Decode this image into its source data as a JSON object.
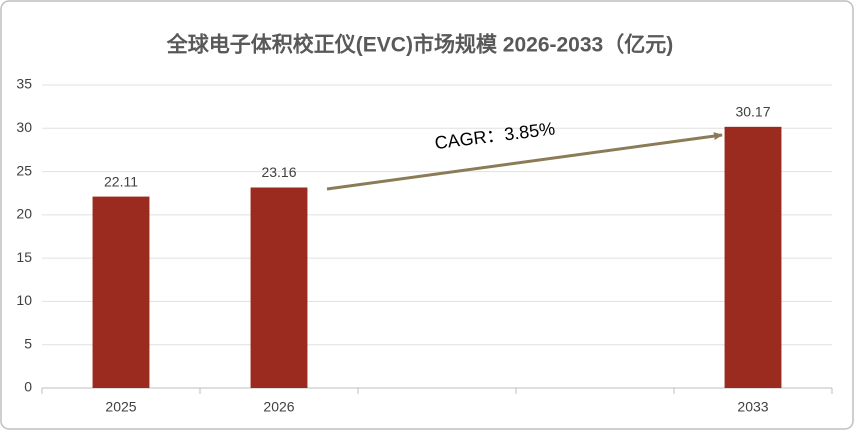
{
  "chart_data": {
    "type": "bar",
    "title": "全球电子体积校正仪(EVC)市场规模 2026-2033（亿元)",
    "categories": [
      "2025",
      "2026",
      null,
      null,
      "2033"
    ],
    "values": [
      22.11,
      23.16,
      null,
      null,
      30.17
    ],
    "color": "#9c2b1f",
    "ylim": [
      0,
      35
    ],
    "yticks": [
      0,
      5,
      10,
      15,
      20,
      25,
      30,
      35
    ],
    "grid": true,
    "annotation": "CAGR：3.85%"
  }
}
